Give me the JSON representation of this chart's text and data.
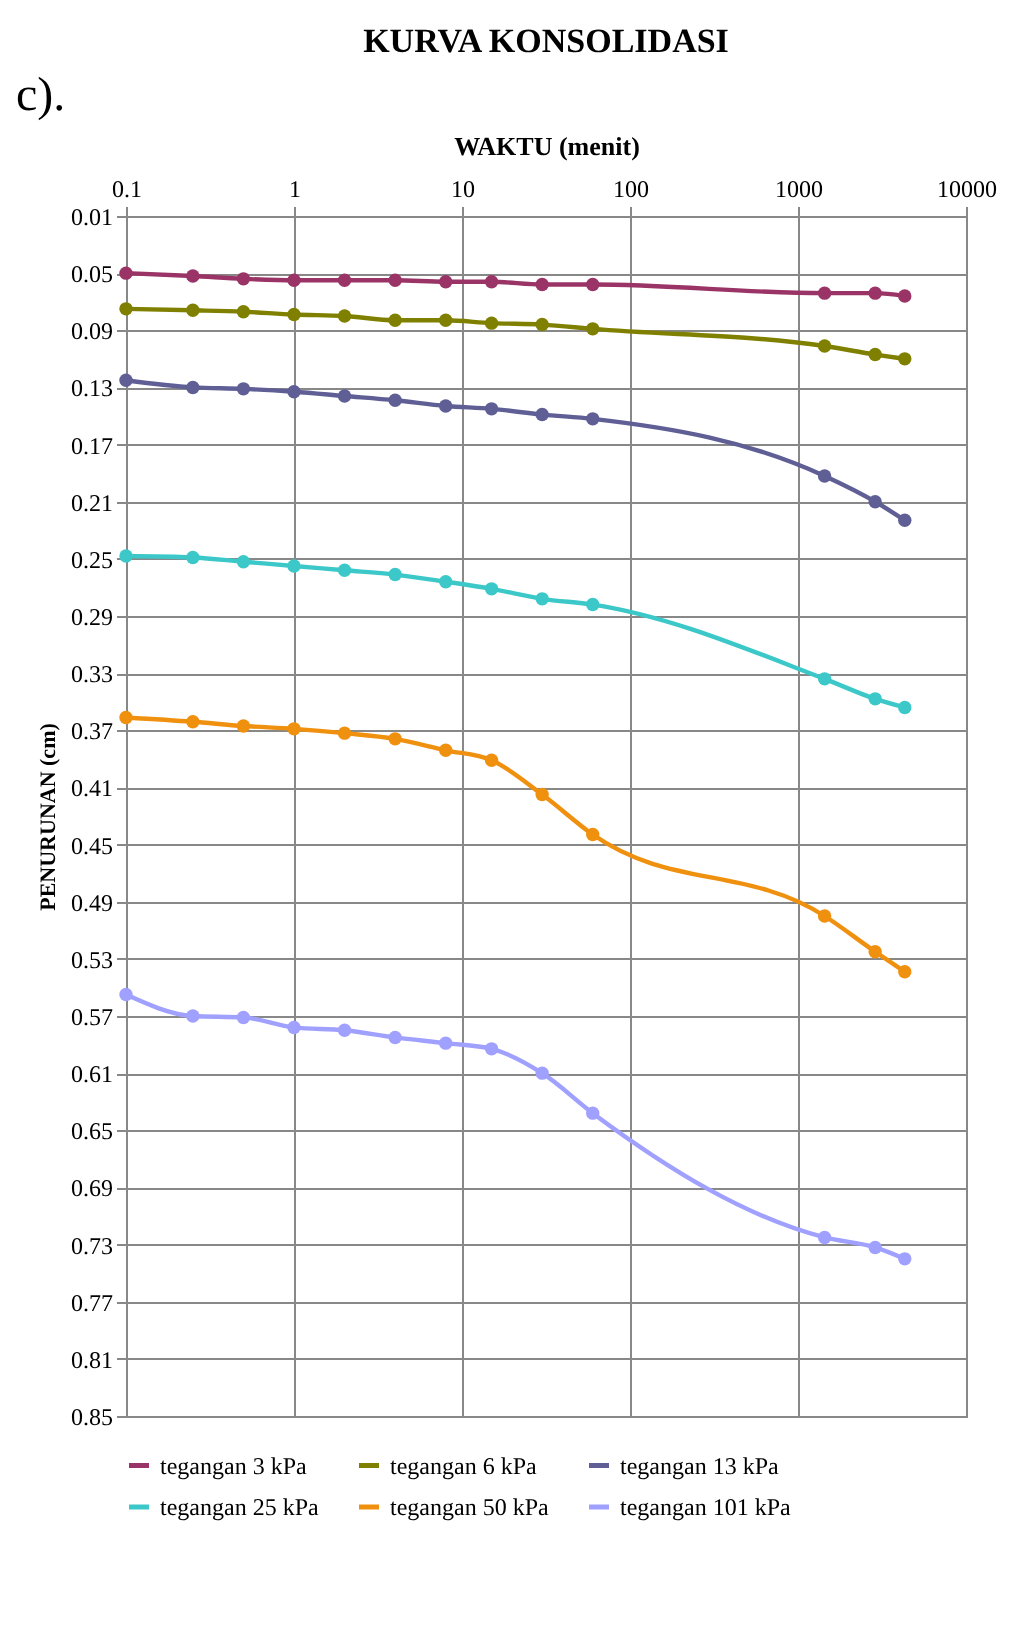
{
  "chart_data": {
    "type": "line",
    "title": "KURVA KONSOLIDASI",
    "xlabel": "WAKTU  (menit)",
    "ylabel": "PENURUNAN (cm)",
    "annotations": [
      "c)."
    ],
    "x": [
      0.1,
      0.25,
      0.5,
      1,
      2,
      4,
      8,
      15,
      30,
      60,
      1440,
      2880,
      4320
    ],
    "series": [
      {
        "name": "tegangan 3 kPa",
        "color": "#9b3466",
        "values": [
          0.05,
          0.052,
          0.054,
          0.055,
          0.055,
          0.055,
          0.056,
          0.056,
          0.058,
          0.058,
          0.064,
          0.064,
          0.066
        ]
      },
      {
        "name": "tegangan 6 kPa",
        "color": "#808000",
        "values": [
          0.075,
          0.076,
          0.077,
          0.079,
          0.08,
          0.083,
          0.083,
          0.085,
          0.086,
          0.089,
          0.101,
          0.107,
          0.11
        ]
      },
      {
        "name": "tegangan 13 kPa",
        "color": "#5f5f96",
        "values": [
          0.125,
          0.13,
          0.131,
          0.133,
          0.136,
          0.139,
          0.143,
          0.145,
          0.149,
          0.152,
          0.192,
          0.21,
          0.223
        ]
      },
      {
        "name": "tegangan 25 kPa",
        "color": "#3cc8c8",
        "values": [
          0.248,
          0.249,
          0.252,
          0.255,
          0.258,
          0.261,
          0.266,
          0.271,
          0.278,
          0.282,
          0.334,
          0.348,
          0.354
        ]
      },
      {
        "name": "tegangan 50 kPa",
        "color": "#f0900f",
        "values": [
          0.361,
          0.364,
          0.367,
          0.369,
          0.372,
          0.376,
          0.384,
          0.391,
          0.415,
          0.443,
          0.5,
          0.525,
          0.539
        ]
      },
      {
        "name": "tegangan 101 kPa",
        "color": "#a0a0ff",
        "values": [
          0.555,
          0.57,
          0.571,
          0.578,
          0.58,
          0.585,
          0.589,
          0.593,
          0.61,
          0.638,
          0.725,
          0.732,
          0.74
        ]
      }
    ],
    "log": "x",
    "xlim": [
      0.1,
      10000
    ],
    "xticks": [
      0.1,
      1,
      10,
      100,
      1000,
      10000
    ],
    "ylim": [
      0.85,
      0.01
    ],
    "yticks": [
      0.01,
      0.05,
      0.09,
      0.13,
      0.17,
      0.21,
      0.25,
      0.29,
      0.33,
      0.37,
      0.41,
      0.45,
      0.49,
      0.53,
      0.57,
      0.61,
      0.65,
      0.69,
      0.73,
      0.77,
      0.81,
      0.85
    ],
    "grid": true,
    "legend": "bottom",
    "marker": "circle",
    "line_style": "solid"
  }
}
